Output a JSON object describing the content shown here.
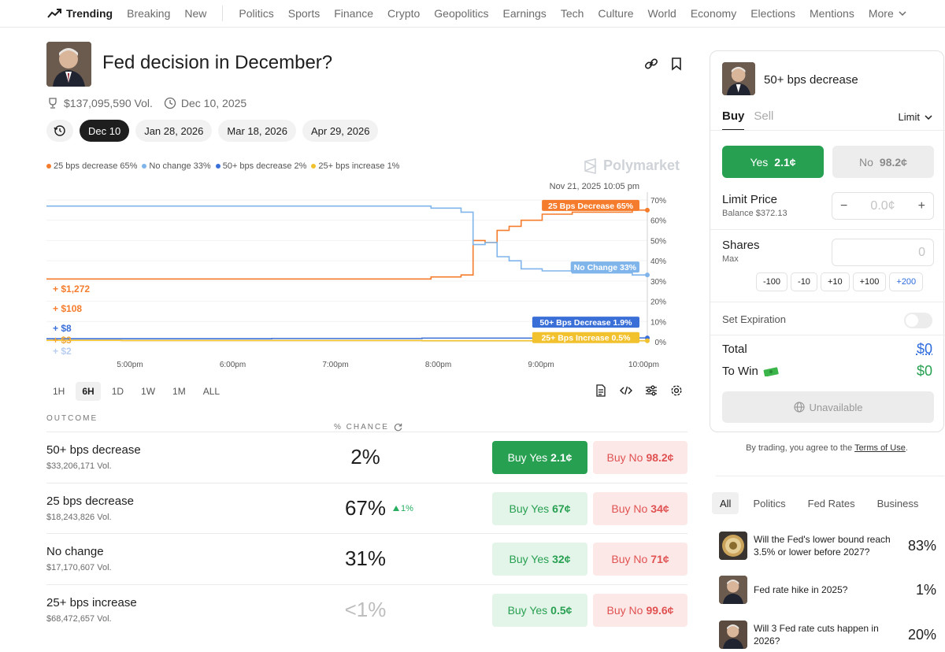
{
  "nav": {
    "trending": "Trending",
    "items": [
      "Breaking",
      "New"
    ],
    "categories": [
      "Politics",
      "Sports",
      "Finance",
      "Crypto",
      "Geopolitics",
      "Earnings",
      "Tech",
      "Culture",
      "World",
      "Economy",
      "Elections",
      "Mentions"
    ],
    "more": "More"
  },
  "market": {
    "title": "Fed decision in December?",
    "volume": "$137,095,590 Vol.",
    "end_date": "Dec 10, 2025",
    "dates": [
      "Dec 10",
      "Jan 28, 2026",
      "Mar 18, 2026",
      "Apr 29, 2026"
    ],
    "active_date": "Dec 10"
  },
  "legend": [
    {
      "label": "25 bps decrease 65%",
      "color": "#f47c2c"
    },
    {
      "label": "No change 33%",
      "color": "#7fb5ea"
    },
    {
      "label": "50+ bps decrease 2%",
      "color": "#3a6fd8"
    },
    {
      "label": "25+ bps increase 1%",
      "color": "#f2c12e"
    }
  ],
  "watermark": "Polymarket",
  "chart_data": {
    "type": "line",
    "hover_time": "Nov 21, 2025 10:05 pm",
    "x_ticks": [
      "5:00pm",
      "6:00pm",
      "7:00pm",
      "8:00pm",
      "9:00pm",
      "10:00pm"
    ],
    "y_ticks": [
      "70%",
      "60%",
      "50%",
      "40%",
      "30%",
      "20%",
      "10%",
      "0%"
    ],
    "ylim": [
      0,
      70
    ],
    "series": [
      {
        "name": "25 Bps Decrease",
        "label": "25 Bps Decrease 65%",
        "color": "#f47c2c",
        "x": [
          0,
          0.1,
          0.2,
          0.3,
          0.4,
          0.5,
          0.6,
          0.68,
          0.7,
          0.72,
          0.74,
          0.76,
          0.78,
          0.8,
          0.85,
          0.9,
          0.95,
          1.0
        ],
        "values": [
          31,
          31,
          31,
          31,
          31,
          31,
          31,
          32,
          33,
          50,
          49,
          55,
          57,
          60,
          63,
          64,
          64,
          65
        ]
      },
      {
        "name": "No Change",
        "label": "No Change 33%",
        "color": "#7fb5ea",
        "x": [
          0,
          0.1,
          0.2,
          0.3,
          0.4,
          0.5,
          0.6,
          0.68,
          0.7,
          0.72,
          0.74,
          0.76,
          0.78,
          0.8,
          0.85,
          0.9,
          0.95,
          1.0
        ],
        "values": [
          67,
          67,
          67,
          67,
          67,
          67,
          67,
          66,
          64,
          48,
          49,
          42,
          40,
          36,
          35,
          34,
          34,
          33
        ]
      },
      {
        "name": "50+ Bps Decrease",
        "label": "50+ Bps Decrease 1.9%",
        "color": "#3a6fd8",
        "x": [
          0,
          0.25,
          0.5,
          0.75,
          1.0
        ],
        "values": [
          1.5,
          1.5,
          1.6,
          1.8,
          1.9
        ]
      },
      {
        "name": "25+ Bps Increase",
        "label": "25+ Bps Increase 0.5%",
        "color": "#f2c12e",
        "x": [
          0,
          0.25,
          0.5,
          0.75,
          1.0
        ],
        "values": [
          0.7,
          0.6,
          0.6,
          0.5,
          0.5
        ]
      }
    ],
    "trade_labels": [
      {
        "text": "+ $1,272",
        "color": "#f47c2c"
      },
      {
        "text": "+ $108",
        "color": "#f47c2c"
      },
      {
        "text": "+ $8",
        "color": "#3a6fd8"
      },
      {
        "text": "+ $3",
        "color": "#f2a93a"
      },
      {
        "text": "+ $2",
        "color": "#b8cdf0"
      }
    ]
  },
  "ranges": [
    "1H",
    "6H",
    "1D",
    "1W",
    "1M",
    "ALL"
  ],
  "active_range": "6H",
  "table": {
    "outcome_header": "OUTCOME",
    "chance_header": "% CHANCE",
    "rows": [
      {
        "name": "50+ bps decrease",
        "vol": "$33,206,171 Vol.",
        "pct": "2%",
        "delta": "",
        "yes_label": "Buy Yes",
        "yes_price": "2.1¢",
        "no_label": "Buy No",
        "no_price": "98.2¢"
      },
      {
        "name": "25 bps decrease",
        "vol": "$18,243,826 Vol.",
        "pct": "67%",
        "delta": "1%",
        "yes_label": "Buy Yes",
        "yes_price": "67¢",
        "no_label": "Buy No",
        "no_price": "34¢"
      },
      {
        "name": "No change",
        "vol": "$17,170,607 Vol.",
        "pct": "31%",
        "delta": "",
        "yes_label": "Buy Yes",
        "yes_price": "32¢",
        "no_label": "Buy No",
        "no_price": "71¢"
      },
      {
        "name": "25+ bps increase",
        "vol": "$68,472,657 Vol.",
        "pct": "<1%",
        "delta": "",
        "yes_label": "Buy Yes",
        "yes_price": "0.5¢",
        "no_label": "Buy No",
        "no_price": "99.6¢"
      }
    ]
  },
  "panel": {
    "title": "50+ bps decrease",
    "buy": "Buy",
    "sell": "Sell",
    "order_type": "Limit",
    "yes_label": "Yes",
    "yes_price": "2.1¢",
    "no_label": "No",
    "no_price": "98.2¢",
    "limit_price_label": "Limit Price",
    "balance": "Balance $372.13",
    "limit_value": "0.0¢",
    "shares_label": "Shares",
    "max_label": "Max",
    "shares_value": "0",
    "quick": [
      "-100",
      "-10",
      "+10",
      "+100",
      "+200"
    ],
    "expiration_label": "Set Expiration",
    "total_label": "Total",
    "total_value": "$0",
    "win_label": "To Win",
    "win_value": "$0",
    "unavailable": "Unavailable"
  },
  "terms": {
    "prefix": "By trading, you agree to the ",
    "link": "Terms of Use",
    "suffix": "."
  },
  "related_tabs": [
    "All",
    "Politics",
    "Fed Rates",
    "Business"
  ],
  "related": [
    {
      "text": "Will the Fed's lower bound reach 3.5% or lower before 2027?",
      "pct": "83%"
    },
    {
      "text": "Fed rate hike in 2025?",
      "pct": "1%"
    },
    {
      "text": "Will 3 Fed rate cuts happen in 2026?",
      "pct": "20%"
    }
  ]
}
